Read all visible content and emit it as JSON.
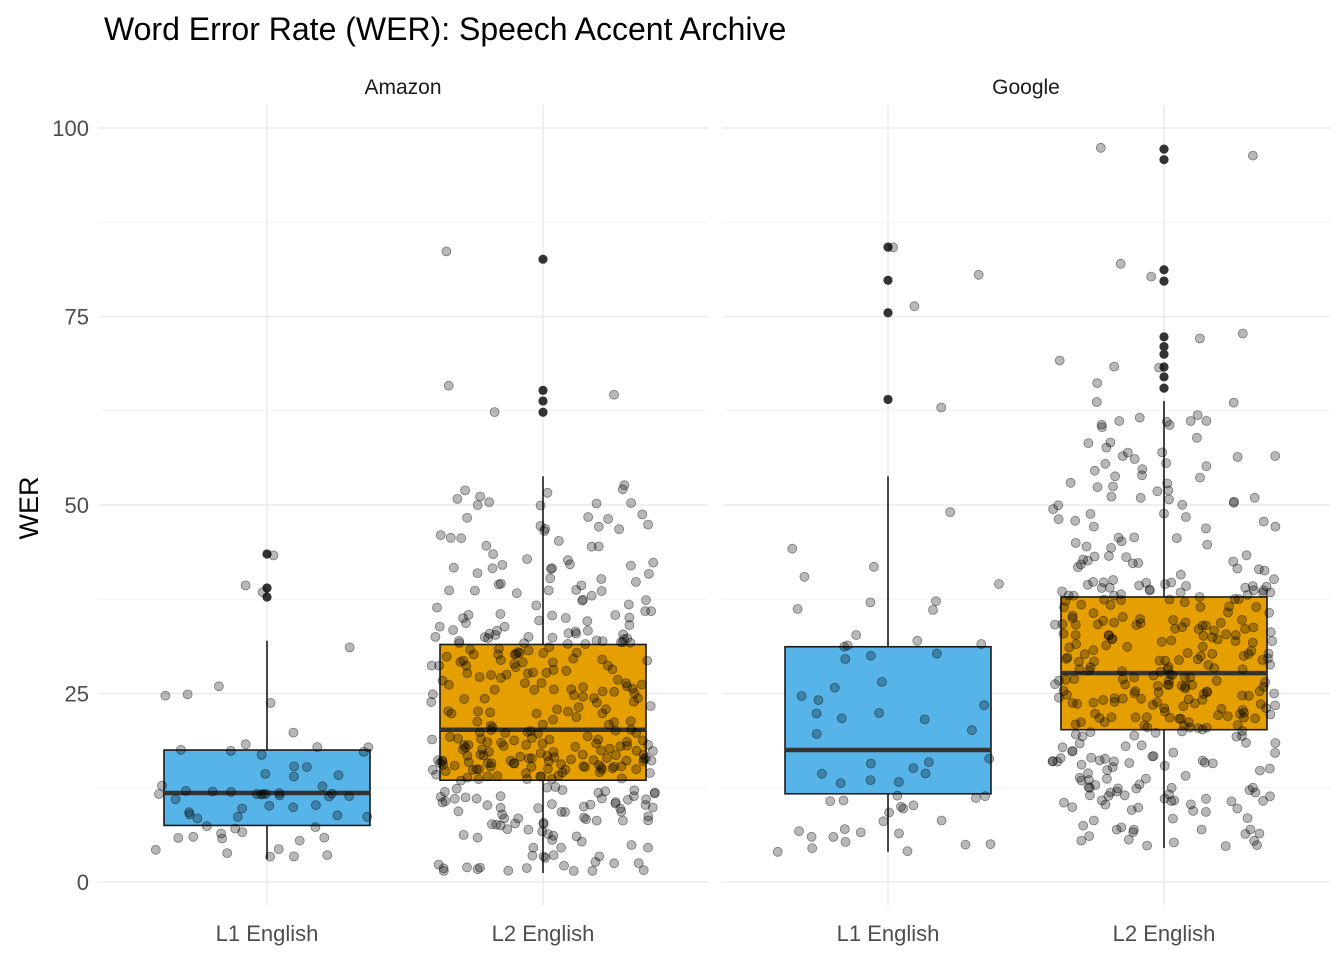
{
  "chart_data": {
    "type": "boxplot",
    "title": "Word Error Rate (WER): Speech Accent Archive",
    "xlabel": "",
    "ylabel": "WER",
    "ylim": [
      0,
      100
    ],
    "y_ticks": [
      0,
      25,
      50,
      75,
      100
    ],
    "categories": [
      "L1 English",
      "L2 English"
    ],
    "facets": [
      "Amazon",
      "Google"
    ],
    "grid": true,
    "colors": {
      "L1 English": "#56B4E9",
      "L2 English": "#E69F00",
      "points": "#000000",
      "grid": "#ebebeb"
    },
    "panels": [
      {
        "facet": "Amazon",
        "boxes": [
          {
            "category": "L1 English",
            "min": 3,
            "q1": 7.5,
            "median": 11.8,
            "q3": 17.5,
            "max": 32,
            "outliers": [
              37.8,
              39,
              43.5
            ]
          },
          {
            "category": "L2 English",
            "min": 1.2,
            "q1": 13.5,
            "median": 20.2,
            "q3": 31.5,
            "max": 53.8,
            "outliers": [
              62.3,
              63.8,
              65.2,
              82.6
            ]
          }
        ]
      },
      {
        "facet": "Google",
        "boxes": [
          {
            "category": "L1 English",
            "min": 4,
            "q1": 11.7,
            "median": 17.5,
            "q3": 31.2,
            "max": 53.8,
            "outliers": [
              64,
              75.5,
              79.8,
              84.2
            ]
          },
          {
            "category": "L2 English",
            "min": 4.5,
            "q1": 20.2,
            "median": 27.7,
            "q3": 37.8,
            "max": 63.8,
            "outliers": [
              65.5,
              67,
              68.3,
              70,
              71,
              72.3,
              79.7,
              81.2,
              95.8,
              97.2
            ]
          }
        ]
      }
    ]
  }
}
